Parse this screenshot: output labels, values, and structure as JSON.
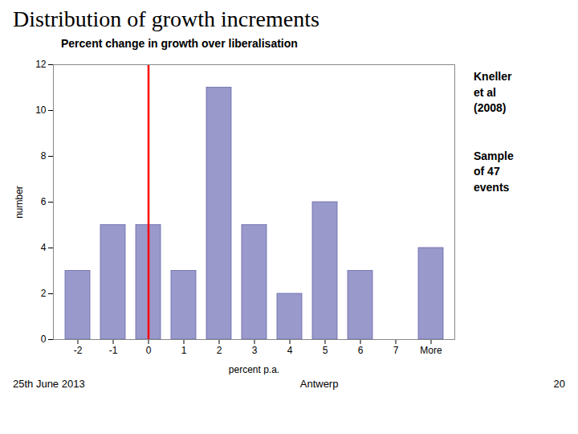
{
  "chart_data": {
    "type": "bar",
    "title": "Distribution of growth increments",
    "subtitle": "Percent change in growth over liberalisation",
    "xlabel": "percent p.a.",
    "ylabel": "number",
    "categories": [
      "-2",
      "-1",
      "0",
      "1",
      "2",
      "3",
      "4",
      "5",
      "6",
      "7",
      "More"
    ],
    "values": [
      3,
      5,
      5,
      3,
      11,
      5,
      2,
      6,
      3,
      0,
      4
    ],
    "color": "#9999cc",
    "ylim": [
      0,
      12
    ],
    "yticks": [
      0,
      2,
      4,
      6,
      8,
      10,
      12
    ],
    "grid": false,
    "reference_line": {
      "x": "0",
      "color": "red"
    },
    "annotations": [
      "Kneller\net al\n(2008)",
      "Sample\nof 47\nevents"
    ],
    "footer": [
      "25th June 2013",
      "Antwerp",
      "20"
    ]
  }
}
